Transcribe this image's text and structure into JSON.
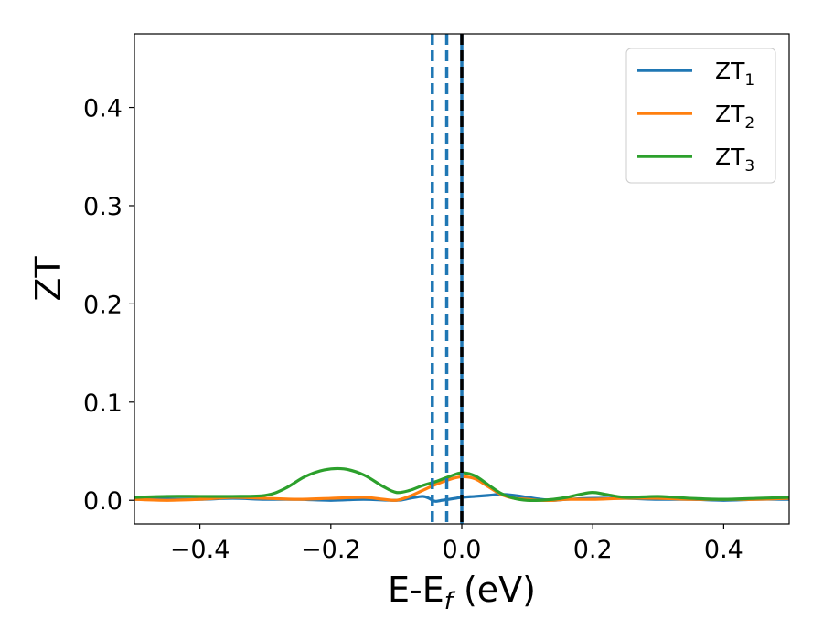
{
  "chart_data": {
    "type": "line",
    "title": "",
    "xlabel_main": "E-E",
    "xlabel_sub": "f",
    "xlabel_unit": " (eV)",
    "ylabel": "ZT",
    "xlim": [
      -0.5,
      0.5
    ],
    "ylim": [
      -0.024,
      0.475
    ],
    "x_ticks": [
      {
        "value": -0.4,
        "label": "−0.4"
      },
      {
        "value": -0.2,
        "label": "−0.2"
      },
      {
        "value": 0.0,
        "label": "0.0"
      },
      {
        "value": 0.2,
        "label": "0.2"
      },
      {
        "value": 0.4,
        "label": "0.4"
      }
    ],
    "y_ticks": [
      {
        "value": 0.0,
        "label": "0.0"
      },
      {
        "value": 0.1,
        "label": "0.1"
      },
      {
        "value": 0.2,
        "label": "0.2"
      },
      {
        "value": 0.3,
        "label": "0.3"
      },
      {
        "value": 0.4,
        "label": "0.4"
      }
    ],
    "grid": false,
    "legend_position": "top-right",
    "series": [
      {
        "name_main": "ZT",
        "name_sub": "1",
        "color": "#1f77b4",
        "x": [
          -0.5,
          -0.45,
          -0.4,
          -0.35,
          -0.3,
          -0.25,
          -0.2,
          -0.15,
          -0.1,
          -0.08,
          -0.06,
          -0.05,
          -0.045,
          -0.04,
          -0.03,
          -0.02,
          -0.01,
          0.0,
          0.02,
          0.04,
          0.06,
          0.08,
          0.1,
          0.12,
          0.14,
          0.16,
          0.2,
          0.25,
          0.3,
          0.35,
          0.4,
          0.45,
          0.5
        ],
        "y": [
          0.001,
          0.001,
          0.001,
          0.002,
          0.001,
          0.001,
          0.0,
          0.001,
          0.0,
          0.002,
          0.004,
          0.002,
          0.0,
          -0.001,
          0.0,
          0.001,
          0.002,
          0.003,
          0.004,
          0.005,
          0.006,
          0.005,
          0.003,
          0.001,
          0.0,
          0.001,
          0.002,
          0.002,
          0.001,
          0.001,
          0.0,
          0.001,
          0.001
        ]
      },
      {
        "name_main": "ZT",
        "name_sub": "2",
        "color": "#ff7f0e",
        "x": [
          -0.5,
          -0.45,
          -0.4,
          -0.35,
          -0.3,
          -0.25,
          -0.2,
          -0.15,
          -0.12,
          -0.1,
          -0.08,
          -0.06,
          -0.04,
          -0.02,
          0.0,
          0.02,
          0.04,
          0.06,
          0.08,
          0.1,
          0.12,
          0.14,
          0.16,
          0.2,
          0.25,
          0.3,
          0.35,
          0.4,
          0.45,
          0.5
        ],
        "y": [
          0.001,
          0.0,
          0.001,
          0.003,
          0.002,
          0.001,
          0.002,
          0.003,
          0.001,
          0.0,
          0.004,
          0.01,
          0.016,
          0.021,
          0.024,
          0.022,
          0.014,
          0.006,
          0.002,
          0.001,
          0.0,
          0.0,
          0.001,
          0.001,
          0.002,
          0.002,
          0.001,
          0.001,
          0.001,
          0.002
        ]
      },
      {
        "name_main": "ZT",
        "name_sub": "3",
        "color": "#2ca02c",
        "x": [
          -0.5,
          -0.45,
          -0.4,
          -0.35,
          -0.3,
          -0.27,
          -0.24,
          -0.21,
          -0.18,
          -0.15,
          -0.12,
          -0.1,
          -0.08,
          -0.06,
          -0.04,
          -0.02,
          0.0,
          0.02,
          0.04,
          0.06,
          0.08,
          0.1,
          0.12,
          0.14,
          0.16,
          0.18,
          0.2,
          0.22,
          0.25,
          0.3,
          0.35,
          0.4,
          0.45,
          0.5
        ],
        "y": [
          0.003,
          0.004,
          0.004,
          0.004,
          0.005,
          0.012,
          0.024,
          0.031,
          0.032,
          0.026,
          0.014,
          0.008,
          0.01,
          0.015,
          0.019,
          0.024,
          0.028,
          0.025,
          0.016,
          0.007,
          0.002,
          0.0,
          0.0,
          0.001,
          0.003,
          0.006,
          0.008,
          0.006,
          0.003,
          0.004,
          0.002,
          0.001,
          0.002,
          0.003
        ]
      }
    ],
    "vertical_lines": [
      {
        "x": -0.045,
        "color": "#1f77b4",
        "style": "dashed"
      },
      {
        "x": -0.023,
        "color": "#1f77b4",
        "style": "dashed"
      },
      {
        "x": 0.0,
        "color": "#1f77b4",
        "style": "solid"
      },
      {
        "x": 0.0,
        "color": "#000000",
        "style": "dashed"
      }
    ]
  }
}
